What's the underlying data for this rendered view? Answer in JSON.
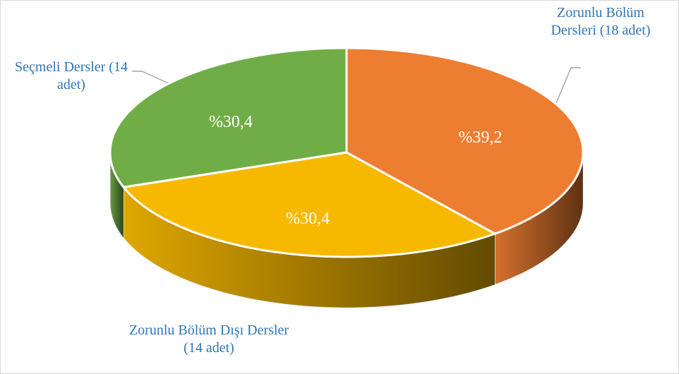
{
  "chart_data": {
    "type": "pie",
    "categories": [
      "Zorunlu Bölüm Dersleri (18 adet)",
      "Zorunlu Bölüm Dışı Dersler (14 adet)",
      "Seçmeli Dersler (14 adet)"
    ],
    "values": [
      39.2,
      30.4,
      30.4
    ],
    "value_labels": [
      "%39,2",
      "%30,4",
      "%30,4"
    ],
    "colors": [
      "#ed7d31",
      "#f7b900",
      "#70ad47"
    ]
  }
}
